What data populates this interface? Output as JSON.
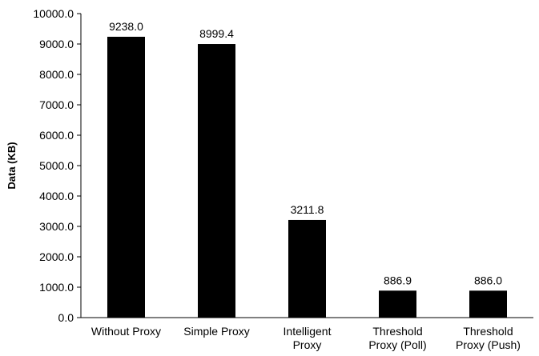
{
  "chart_data": {
    "type": "bar",
    "title": "",
    "xlabel": "",
    "ylabel": "Data (KB)",
    "ylim": [
      0,
      10000
    ],
    "ytick_step": 1000,
    "ytick_labels": [
      "0.0",
      "1000.0",
      "2000.0",
      "3000.0",
      "4000.0",
      "5000.0",
      "6000.0",
      "7000.0",
      "8000.0",
      "9000.0",
      "10000.0"
    ],
    "categories": [
      [
        "Without Proxy"
      ],
      [
        "Simple Proxy"
      ],
      [
        "Intelligent",
        "Proxy"
      ],
      [
        "Threshold",
        "Proxy (Poll)"
      ],
      [
        "Threshold",
        "Proxy (Push)"
      ]
    ],
    "values": [
      9238.0,
      8999.4,
      3211.8,
      886.9,
      886.0
    ],
    "data_labels": [
      "9238.0",
      "8999.4",
      "3211.8",
      "886.9",
      "886.0"
    ],
    "bar_color": "#000000",
    "grid": false,
    "legend": "none"
  }
}
